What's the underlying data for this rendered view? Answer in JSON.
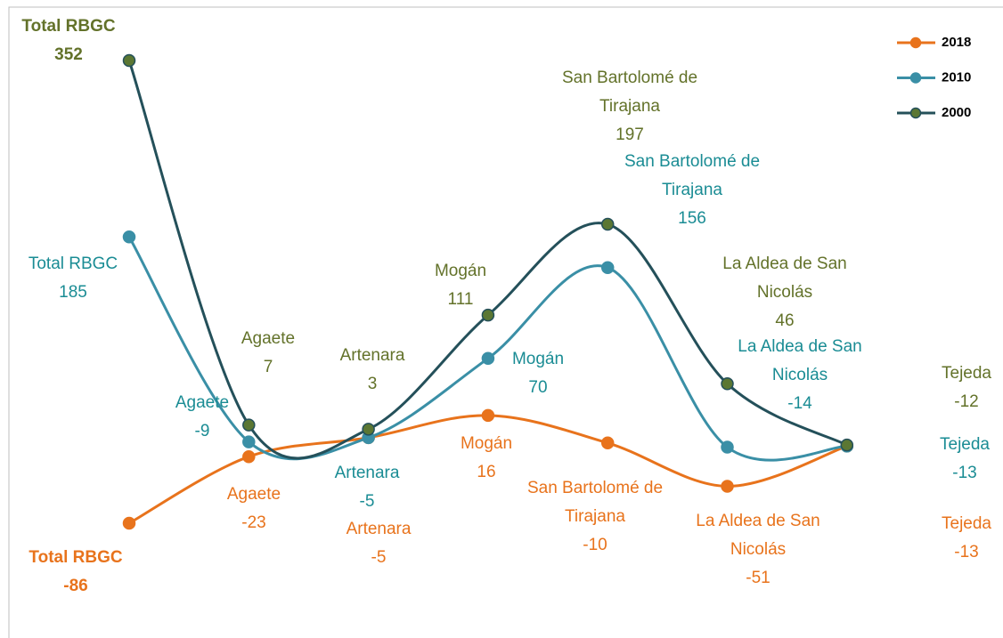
{
  "chart_data": {
    "type": "line",
    "categories": [
      "Total RBGC",
      "Agaete",
      "Artenara",
      "Mogán",
      "San Bartolomé de Tirajana",
      "La Aldea de San Nicolás",
      "Tejeda"
    ],
    "series": [
      {
        "name": "2018",
        "color": "#e8731c",
        "marker_color": "#e8731c",
        "label_color": "#e8731c",
        "values": [
          -86,
          -23,
          -5,
          16,
          -10,
          -51,
          -13
        ]
      },
      {
        "name": "2010",
        "color": "#3a8fa6",
        "marker_color": "#3a8fa6",
        "label_color": "#1a8c94",
        "values": [
          185,
          -9,
          -5,
          70,
          156,
          -14,
          -13
        ]
      },
      {
        "name": "2000",
        "color": "#24505a",
        "marker_color": "#5b7733",
        "label_color": "#63722a",
        "values": [
          352,
          7,
          3,
          111,
          197,
          46,
          -12
        ]
      }
    ],
    "legend": "upper right",
    "smooth": true,
    "data_labels": true
  }
}
